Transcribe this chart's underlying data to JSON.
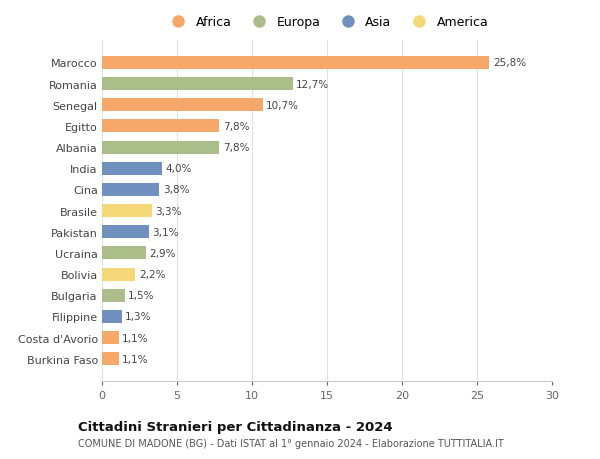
{
  "countries": [
    "Marocco",
    "Romania",
    "Senegal",
    "Egitto",
    "Albania",
    "India",
    "Cina",
    "Brasile",
    "Pakistan",
    "Ucraina",
    "Bolivia",
    "Bulgaria",
    "Filippine",
    "Costa d'Avorio",
    "Burkina Faso"
  ],
  "values": [
    25.8,
    12.7,
    10.7,
    7.8,
    7.8,
    4.0,
    3.8,
    3.3,
    3.1,
    2.9,
    2.2,
    1.5,
    1.3,
    1.1,
    1.1
  ],
  "labels": [
    "25,8%",
    "12,7%",
    "10,7%",
    "7,8%",
    "7,8%",
    "4,0%",
    "3,8%",
    "3,3%",
    "3,1%",
    "2,9%",
    "2,2%",
    "1,5%",
    "1,3%",
    "1,1%",
    "1,1%"
  ],
  "continent": [
    "Africa",
    "Europa",
    "Africa",
    "Africa",
    "Europa",
    "Asia",
    "Asia",
    "America",
    "Asia",
    "Europa",
    "America",
    "Europa",
    "Asia",
    "Africa",
    "Africa"
  ],
  "colors": {
    "Africa": "#F5A86A",
    "Europa": "#ABBE8A",
    "Asia": "#7090C0",
    "America": "#F5D878"
  },
  "xlim": [
    0,
    30
  ],
  "xticks": [
    0,
    5,
    10,
    15,
    20,
    25,
    30
  ],
  "title": "Cittadini Stranieri per Cittadinanza - 2024",
  "subtitle": "COMUNE DI MADONE (BG) - Dati ISTAT al 1° gennaio 2024 - Elaborazione TUTTITALIA.IT",
  "background_color": "#ffffff",
  "grid_color": "#e0e0e0",
  "legend_order": [
    "Africa",
    "Europa",
    "Asia",
    "America"
  ]
}
